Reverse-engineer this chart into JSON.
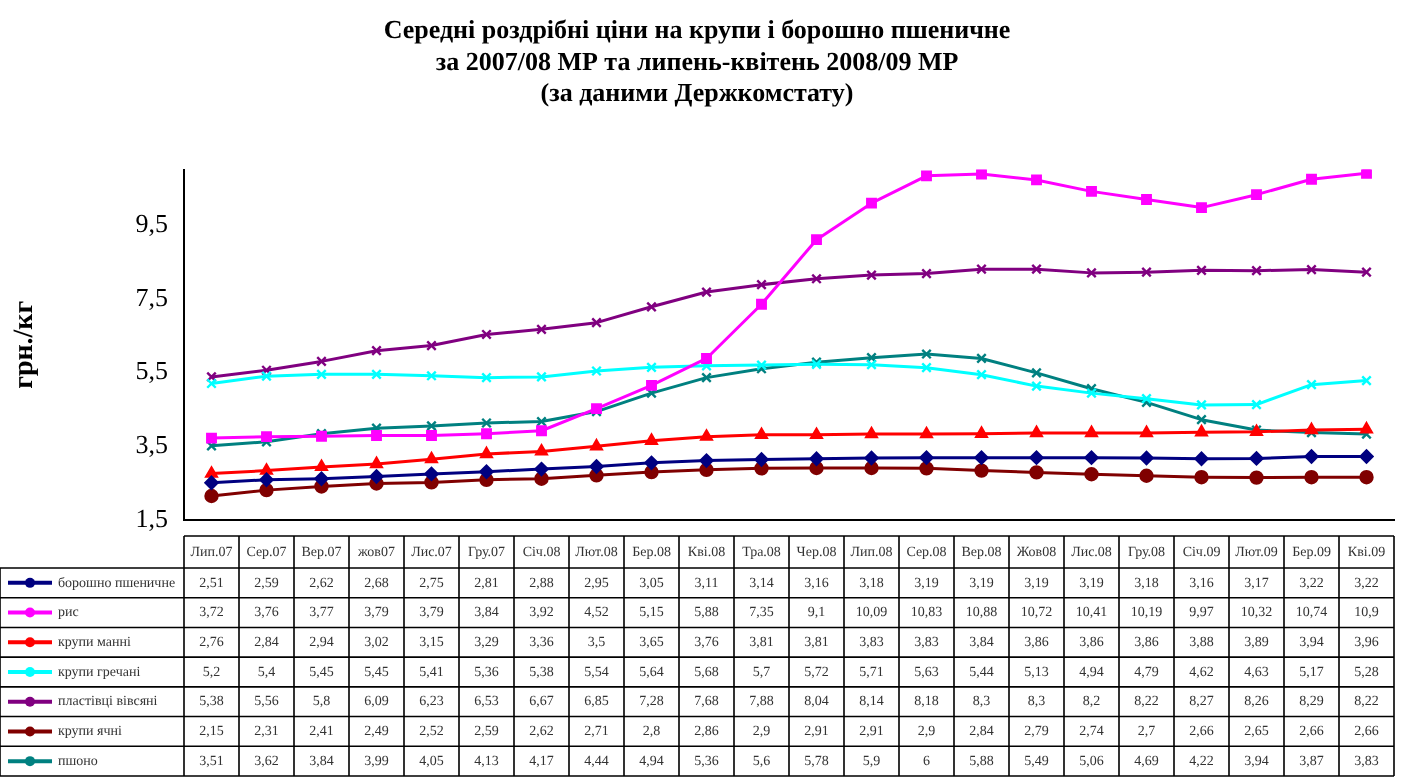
{
  "chart_data": {
    "type": "line",
    "title": "Середні роздрібні ціни на крупи і борошно пшеничне\nза 2007/08 МР та липень-квітень 2008/09 МР\n(за даними Держкомстату)",
    "ylabel": "грн./кг",
    "categories": [
      "Лип.07",
      "Сер.07",
      "Вер.07",
      "жов07",
      "Лис.07",
      "Гру.07",
      "Січ.08",
      "Лют.08",
      "Бер.08",
      "Кві.08",
      "Тра.08",
      "Чер.08",
      "Лип.08",
      "Сер.08",
      "Вер.08",
      "Жов08",
      "Лис.08",
      "Гру.08",
      "Січ.09",
      "Лют.09",
      "Бер.09",
      "Кві.09"
    ],
    "ylim": [
      1.5,
      11
    ],
    "yticks": [
      {
        "value": 1.5,
        "label": "1,5"
      },
      {
        "value": 3.5,
        "label": "3,5"
      },
      {
        "value": 5.5,
        "label": "5,5"
      },
      {
        "value": 7.5,
        "label": "7,5"
      },
      {
        "value": 9.5,
        "label": "9,5"
      }
    ],
    "legend": "bottom",
    "series": [
      {
        "name": "борошно пшеничне",
        "color": "#000080",
        "marker": "diamond",
        "values": [
          2.51,
          2.59,
          2.62,
          2.68,
          2.75,
          2.81,
          2.88,
          2.95,
          3.05,
          3.11,
          3.14,
          3.16,
          3.18,
          3.19,
          3.19,
          3.19,
          3.19,
          3.18,
          3.16,
          3.17,
          3.22,
          3.22
        ],
        "value_labels": [
          "2,51",
          "2,59",
          "2,62",
          "2,68",
          "2,75",
          "2,81",
          "2,88",
          "2,95",
          "3,05",
          "3,11",
          "3,14",
          "3,16",
          "3,18",
          "3,19",
          "3,19",
          "3,19",
          "3,19",
          "3,18",
          "3,16",
          "3,17",
          "3,22",
          "3,22"
        ]
      },
      {
        "name": "рис",
        "color": "#ff00ff",
        "marker": "square",
        "values": [
          3.72,
          3.76,
          3.77,
          3.79,
          3.79,
          3.84,
          3.92,
          4.52,
          5.15,
          5.88,
          7.35,
          9.1,
          10.09,
          10.83,
          10.88,
          10.72,
          10.41,
          10.19,
          9.97,
          10.32,
          10.74,
          10.9
        ],
        "value_labels": [
          "3,72",
          "3,76",
          "3,77",
          "3,79",
          "3,79",
          "3,84",
          "3,92",
          "4,52",
          "5,15",
          "5,88",
          "7,35",
          "9,1",
          "10,09",
          "10,83",
          "10,88",
          "10,72",
          "10,41",
          "10,19",
          "9,97",
          "10,32",
          "10,74",
          "10,9"
        ]
      },
      {
        "name": "крупи манні",
        "color": "#ff0000",
        "marker": "triangle",
        "values": [
          2.76,
          2.84,
          2.94,
          3.02,
          3.15,
          3.29,
          3.36,
          3.5,
          3.65,
          3.76,
          3.81,
          3.81,
          3.83,
          3.83,
          3.84,
          3.86,
          3.86,
          3.86,
          3.88,
          3.89,
          3.94,
          3.96
        ],
        "value_labels": [
          "2,76",
          "2,84",
          "2,94",
          "3,02",
          "3,15",
          "3,29",
          "3,36",
          "3,5",
          "3,65",
          "3,76",
          "3,81",
          "3,81",
          "3,83",
          "3,83",
          "3,84",
          "3,86",
          "3,86",
          "3,86",
          "3,88",
          "3,89",
          "3,94",
          "3,96"
        ]
      },
      {
        "name": "крупи гречані",
        "color": "#00ffff",
        "marker": "cross",
        "values": [
          5.2,
          5.4,
          5.45,
          5.45,
          5.41,
          5.36,
          5.38,
          5.54,
          5.64,
          5.68,
          5.7,
          5.72,
          5.71,
          5.63,
          5.44,
          5.13,
          4.94,
          4.79,
          4.62,
          4.63,
          5.17,
          5.28
        ],
        "value_labels": [
          "5,2",
          "5,4",
          "5,45",
          "5,45",
          "5,41",
          "5,36",
          "5,38",
          "5,54",
          "5,64",
          "5,68",
          "5,7",
          "5,72",
          "5,71",
          "5,63",
          "5,44",
          "5,13",
          "4,94",
          "4,79",
          "4,62",
          "4,63",
          "5,17",
          "5,28"
        ]
      },
      {
        "name": "пластівці вівсяні",
        "color": "#800080",
        "marker": "cross",
        "values": [
          5.38,
          5.56,
          5.8,
          6.09,
          6.23,
          6.53,
          6.67,
          6.85,
          7.28,
          7.68,
          7.88,
          8.04,
          8.14,
          8.18,
          8.3,
          8.3,
          8.2,
          8.22,
          8.27,
          8.26,
          8.29,
          8.22
        ],
        "value_labels": [
          "5,38",
          "5,56",
          "5,8",
          "6,09",
          "6,23",
          "6,53",
          "6,67",
          "6,85",
          "7,28",
          "7,68",
          "7,88",
          "8,04",
          "8,14",
          "8,18",
          "8,3",
          "8,3",
          "8,2",
          "8,22",
          "8,27",
          "8,26",
          "8,29",
          "8,22"
        ]
      },
      {
        "name": "крупи ячні",
        "color": "#800000",
        "marker": "circle",
        "values": [
          2.15,
          2.31,
          2.41,
          2.49,
          2.52,
          2.59,
          2.62,
          2.71,
          2.8,
          2.86,
          2.9,
          2.91,
          2.91,
          2.9,
          2.84,
          2.79,
          2.74,
          2.7,
          2.66,
          2.65,
          2.66,
          2.66
        ],
        "value_labels": [
          "2,15",
          "2,31",
          "2,41",
          "2,49",
          "2,52",
          "2,59",
          "2,62",
          "2,71",
          "2,8",
          "2,86",
          "2,9",
          "2,91",
          "2,91",
          "2,9",
          "2,84",
          "2,79",
          "2,74",
          "2,7",
          "2,66",
          "2,65",
          "2,66",
          "2,66"
        ]
      },
      {
        "name": "пшоно",
        "color": "#008080",
        "marker": "cross",
        "values": [
          3.51,
          3.62,
          3.84,
          3.99,
          4.05,
          4.13,
          4.17,
          4.44,
          4.94,
          5.36,
          5.6,
          5.78,
          5.9,
          6,
          5.88,
          5.49,
          5.06,
          4.69,
          4.22,
          3.94,
          3.87,
          3.83
        ],
        "value_labels": [
          "3,51",
          "3,62",
          "3,84",
          "3,99",
          "4,05",
          "4,13",
          "4,17",
          "4,44",
          "4,94",
          "5,36",
          "5,6",
          "5,78",
          "5,9",
          "6",
          "5,88",
          "5,49",
          "5,06",
          "4,69",
          "4,22",
          "3,94",
          "3,87",
          "3,83"
        ]
      }
    ]
  }
}
